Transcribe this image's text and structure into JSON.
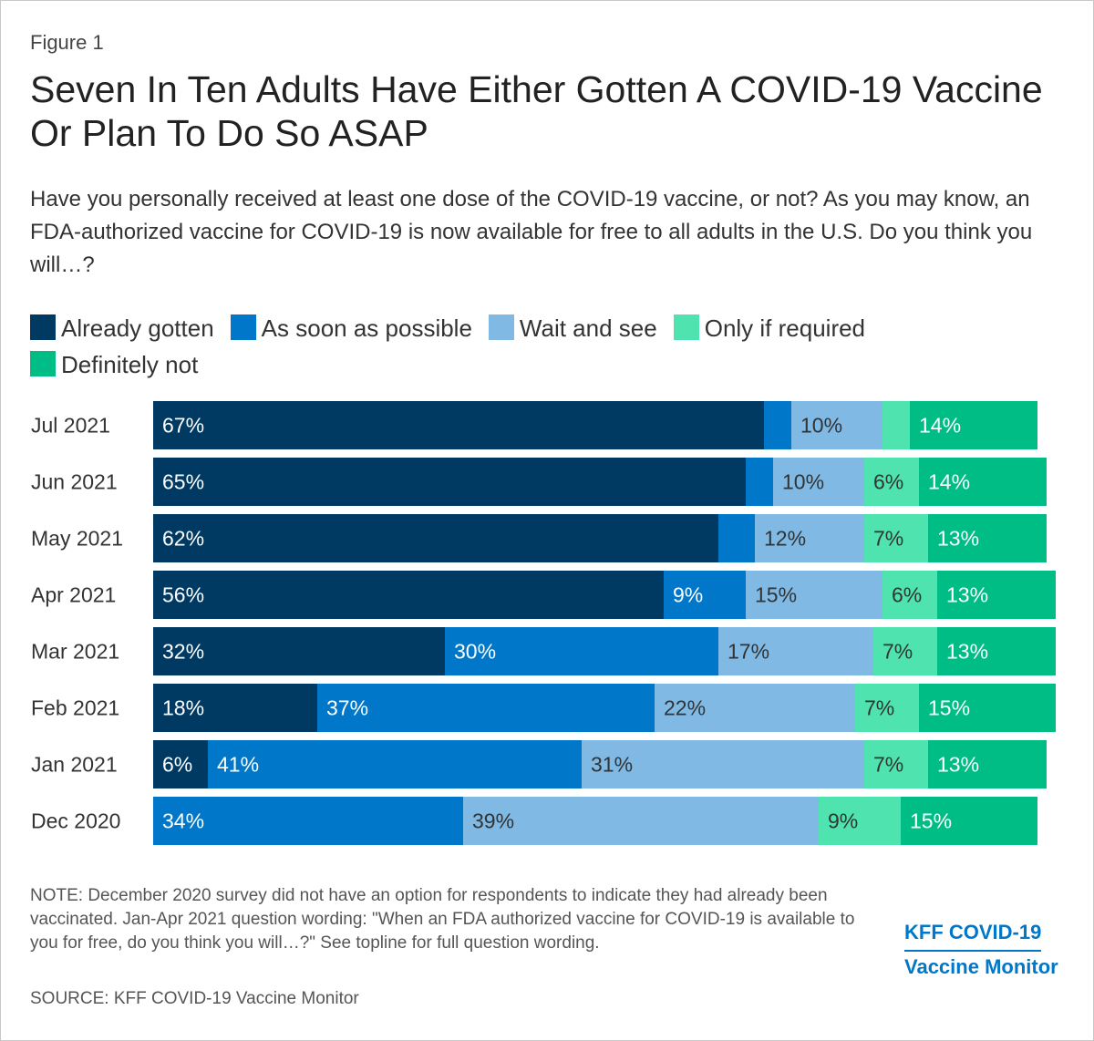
{
  "figure_label": "Figure 1",
  "title": "Seven In Ten Adults Have Either Gotten A COVID-19 Vaccine Or Plan To Do So ASAP",
  "subtitle": "Have you personally received at least one dose of the COVID-19 vaccine, or not? As you may know, an FDA-authorized vaccine for COVID-19 is now available for free to all adults in the U.S. Do you think you will…?",
  "note": "NOTE: December 2020 survey did not have an option for respondents to indicate they had already been vaccinated. Jan-Apr 2021 question wording: \"When an FDA authorized vaccine for COVID-19 is available to you for free, do you think you will…?\" See topline for full question wording.",
  "source": "SOURCE: KFF COVID-19 Vaccine Monitor",
  "brand": {
    "line1": "KFF COVID-19",
    "line2": "Vaccine Monitor"
  },
  "chart_data": {
    "type": "bar",
    "orientation": "horizontal-stacked",
    "categories": [
      "Jul 2021",
      "Jun 2021",
      "May 2021",
      "Apr 2021",
      "Mar 2021",
      "Feb 2021",
      "Jan 2021",
      "Dec 2020"
    ],
    "series": [
      {
        "name": "Already gotten",
        "color": "#003a63",
        "values": [
          67,
          65,
          62,
          56,
          32,
          18,
          6,
          null
        ],
        "labels": [
          "67%",
          "65%",
          "62%",
          "56%",
          "32%",
          "18%",
          "6%",
          ""
        ]
      },
      {
        "name": "As soon as possible",
        "color": "#0077c8",
        "values": [
          3,
          3,
          4,
          9,
          30,
          37,
          41,
          34
        ],
        "labels": [
          "",
          "",
          "",
          "9%",
          "30%",
          "37%",
          "41%",
          "34%"
        ]
      },
      {
        "name": "Wait and see",
        "color": "#7fb9e4",
        "values": [
          10,
          10,
          12,
          15,
          17,
          22,
          31,
          39
        ],
        "labels": [
          "10%",
          "10%",
          "12%",
          "15%",
          "17%",
          "22%",
          "31%",
          "39%"
        ]
      },
      {
        "name": "Only if required",
        "color": "#4fe3b0",
        "values": [
          3,
          6,
          7,
          6,
          7,
          7,
          7,
          9
        ],
        "labels": [
          "",
          "6%",
          "7%",
          "6%",
          "7%",
          "7%",
          "7%",
          "9%"
        ]
      },
      {
        "name": "Definitely not",
        "color": "#00bd85",
        "values": [
          14,
          14,
          13,
          13,
          13,
          15,
          13,
          15
        ],
        "labels": [
          "14%",
          "14%",
          "13%",
          "13%",
          "13%",
          "15%",
          "13%",
          "15%"
        ]
      }
    ],
    "xlim": [
      0,
      100
    ],
    "label_colors": {
      "dark": "#ffffff",
      "light": "#333333"
    },
    "legend_position": "top"
  }
}
